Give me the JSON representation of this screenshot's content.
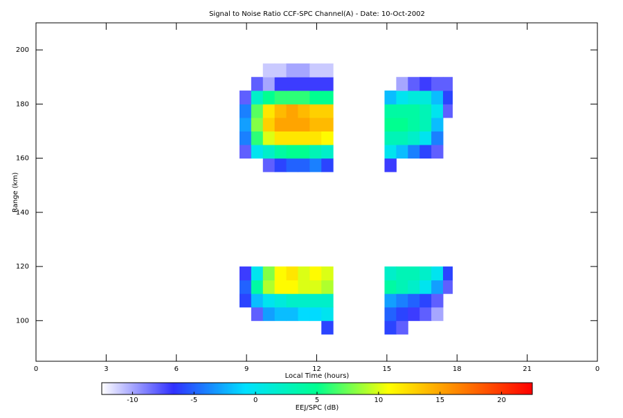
{
  "chart_data": {
    "type": "heatmap",
    "title": "Signal to Noise Ratio CCF-SPC Channel(A) - Date: 10-Oct-2002",
    "xlabel": "Local Time (hours)",
    "ylabel": "Range (km)",
    "colorbar_label": "EEJ/SPC (dB)",
    "xlim": [
      0,
      24
    ],
    "xticks": [
      0,
      3,
      6,
      9,
      12,
      15,
      18,
      21,
      {
        "value": 24,
        "label": "0"
      }
    ],
    "ylim": [
      85,
      210
    ],
    "yticks": [
      100,
      120,
      140,
      160,
      180,
      200
    ],
    "zlim": [
      -12.5,
      22.5
    ],
    "zticks": [
      -10,
      -5,
      0,
      5,
      10,
      15,
      20
    ],
    "colorscale": [
      "#ffffff",
      "#3030ff",
      "#00e0ff",
      "#00ff90",
      "#ffff00",
      "#ff8000",
      "#ff0000"
    ],
    "x": [
      8.7,
      9.2,
      9.7,
      10.2,
      10.7,
      11.2,
      11.7,
      12.2,
      12.7,
      14.9,
      15.4,
      15.9,
      16.4,
      16.9,
      17.4,
      17.8
    ],
    "y": [
      95,
      100,
      105,
      110,
      115,
      120,
      125,
      130,
      135,
      140,
      145,
      150,
      155,
      160,
      165,
      170,
      175,
      180,
      185,
      190,
      195
    ],
    "z": [
      [
        null,
        null,
        null,
        null,
        null,
        null,
        null,
        -6,
        null,
        -6,
        -8,
        null,
        null,
        null,
        null
      ],
      [
        null,
        -8,
        -3,
        -2,
        -2,
        -1,
        -1,
        0,
        null,
        -5,
        -6,
        -7,
        -8,
        -10,
        null
      ],
      [
        -6,
        -2,
        0,
        1,
        2,
        2,
        2,
        2,
        null,
        -3,
        -4,
        -5,
        -6,
        -8,
        null
      ],
      [
        -5,
        4,
        9,
        11,
        11,
        10,
        10,
        9,
        null,
        4,
        3,
        2,
        0,
        -3,
        -8
      ],
      [
        -7,
        0,
        8,
        11,
        12,
        10,
        11,
        10,
        null,
        2,
        3,
        3,
        2,
        0,
        -6
      ],
      [
        null,
        null,
        null,
        null,
        null,
        null,
        null,
        null,
        null,
        null,
        null,
        null,
        null,
        null,
        null
      ],
      [
        null,
        null,
        null,
        null,
        null,
        null,
        null,
        null,
        null,
        null,
        null,
        null,
        null,
        null,
        null
      ],
      [
        null,
        null,
        null,
        null,
        null,
        null,
        null,
        null,
        null,
        null,
        null,
        null,
        null,
        null,
        null
      ],
      [
        null,
        null,
        null,
        null,
        null,
        null,
        null,
        null,
        null,
        null,
        null,
        null,
        null,
        null,
        null
      ],
      [
        null,
        null,
        null,
        null,
        null,
        null,
        null,
        null,
        null,
        null,
        null,
        null,
        null,
        null,
        null
      ],
      [
        null,
        null,
        null,
        null,
        null,
        null,
        null,
        null,
        null,
        null,
        null,
        null,
        null,
        null,
        null
      ],
      [
        null,
        null,
        null,
        null,
        null,
        null,
        null,
        null,
        null,
        null,
        null,
        null,
        null,
        null,
        null
      ],
      [
        null,
        null,
        -8,
        -6,
        -5,
        -5,
        -4,
        -6,
        null,
        -7,
        null,
        null,
        null,
        null,
        null
      ],
      [
        -8,
        0,
        2,
        4,
        5,
        5,
        3,
        2,
        null,
        0,
        -2,
        -4,
        -6,
        -8,
        null
      ],
      [
        -4,
        6,
        10,
        12,
        12,
        12,
        12,
        11,
        null,
        3,
        3,
        2,
        0,
        -4,
        null
      ],
      [
        -3,
        8,
        13,
        15,
        15,
        15,
        14,
        14,
        null,
        5,
        5,
        4,
        3,
        -2,
        null
      ],
      [
        -4,
        7,
        12,
        14,
        15,
        14,
        13,
        13,
        null,
        4,
        4,
        4,
        3,
        0,
        -8
      ],
      [
        -8,
        2,
        5,
        6,
        6,
        6,
        5,
        5,
        null,
        -2,
        0,
        1,
        1,
        -2,
        -6
      ],
      [
        null,
        -8,
        -10,
        -7,
        -7,
        -7,
        -7,
        -7,
        null,
        null,
        -10,
        -8,
        -7,
        -8,
        -8
      ],
      [
        null,
        null,
        -11,
        -11,
        -10,
        -10,
        -11,
        -11,
        null,
        null,
        null,
        null,
        null,
        null,
        null
      ]
    ]
  }
}
